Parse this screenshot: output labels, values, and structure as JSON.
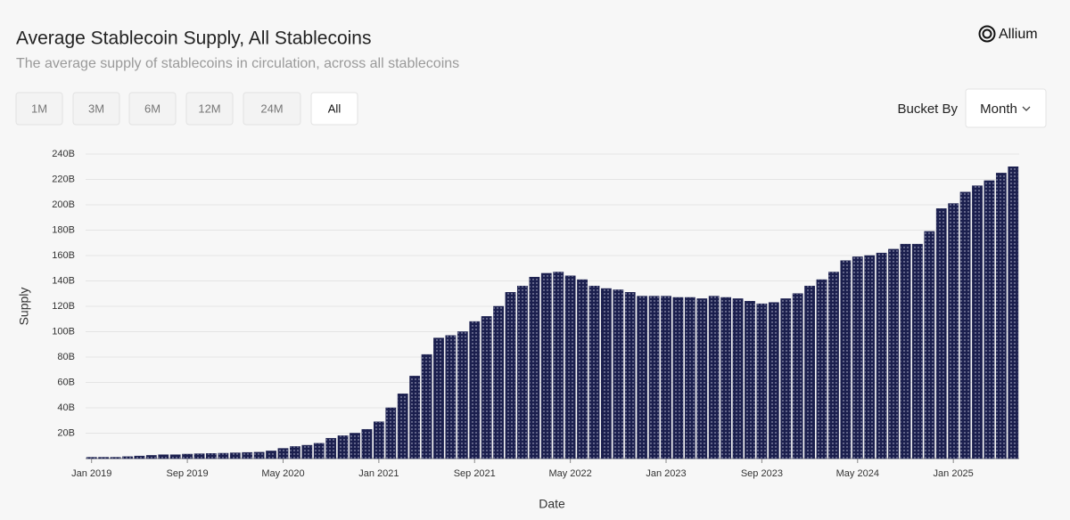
{
  "brand": "Allium",
  "controls": {
    "ranges": [
      "1M",
      "3M",
      "6M",
      "12M",
      "24M",
      "All"
    ],
    "selected": 5,
    "bucket_label": "Bucket By",
    "bucket_value": "Month"
  },
  "chart_data": {
    "type": "bar",
    "title": "Average Stablecoin Supply, All Stablecoins",
    "subtitle": "The average supply of stablecoins in circulation, across all stablecoins",
    "x_label": "Date",
    "y_label": "Supply",
    "color": "#1b1f4e",
    "grid": true,
    "categories": [
      "Jan 2019",
      null,
      null,
      null,
      null,
      null,
      null,
      null,
      "Sep 2019",
      null,
      null,
      null,
      null,
      null,
      null,
      null,
      "May 2020",
      null,
      null,
      null,
      null,
      null,
      null,
      null,
      "Jan 2021",
      null,
      null,
      null,
      null,
      null,
      null,
      null,
      "Sep 2021",
      null,
      null,
      null,
      null,
      null,
      null,
      null,
      "May 2022",
      null,
      null,
      null,
      null,
      null,
      null,
      null,
      "Jan 2023",
      null,
      null,
      null,
      null,
      null,
      null,
      null,
      "Sep 2023",
      null,
      null,
      null,
      null,
      null,
      null,
      null,
      "May 2024",
      null,
      null,
      null,
      null,
      null,
      null,
      null,
      "Jan 2025",
      null,
      null,
      null,
      null,
      null
    ],
    "values": [
      1,
      1,
      1,
      1.5,
      2,
      2.5,
      3,
      3,
      3.5,
      3.8,
      4,
      4.2,
      4.5,
      4.8,
      5,
      6,
      8,
      9.5,
      10.5,
      12,
      16,
      18,
      20,
      23,
      29,
      40,
      51,
      65,
      82,
      95,
      97,
      100,
      108,
      112,
      120,
      131,
      136,
      143,
      146,
      147,
      144,
      141,
      136,
      134,
      133,
      131,
      128,
      128,
      128,
      127,
      127,
      126,
      128,
      127,
      126,
      124,
      122,
      123,
      126,
      130,
      136,
      141,
      147,
      156,
      159,
      160,
      162,
      165,
      169,
      169,
      179,
      197,
      201,
      210,
      215,
      219,
      225,
      230
    ],
    "ylim": [
      0,
      240
    ],
    "yticks": [
      {
        "value": 20,
        "label": "20B"
      },
      {
        "value": 40,
        "label": "40B"
      },
      {
        "value": 60,
        "label": "60B"
      },
      {
        "value": 80,
        "label": "80B"
      },
      {
        "value": 100,
        "label": "100B"
      },
      {
        "value": 120,
        "label": "120B"
      },
      {
        "value": 140,
        "label": "140B"
      },
      {
        "value": 160,
        "label": "160B"
      },
      {
        "value": 180,
        "label": "180B"
      },
      {
        "value": 200,
        "label": "200B"
      },
      {
        "value": 220,
        "label": "220B"
      },
      {
        "value": 240,
        "label": "240B"
      }
    ]
  }
}
